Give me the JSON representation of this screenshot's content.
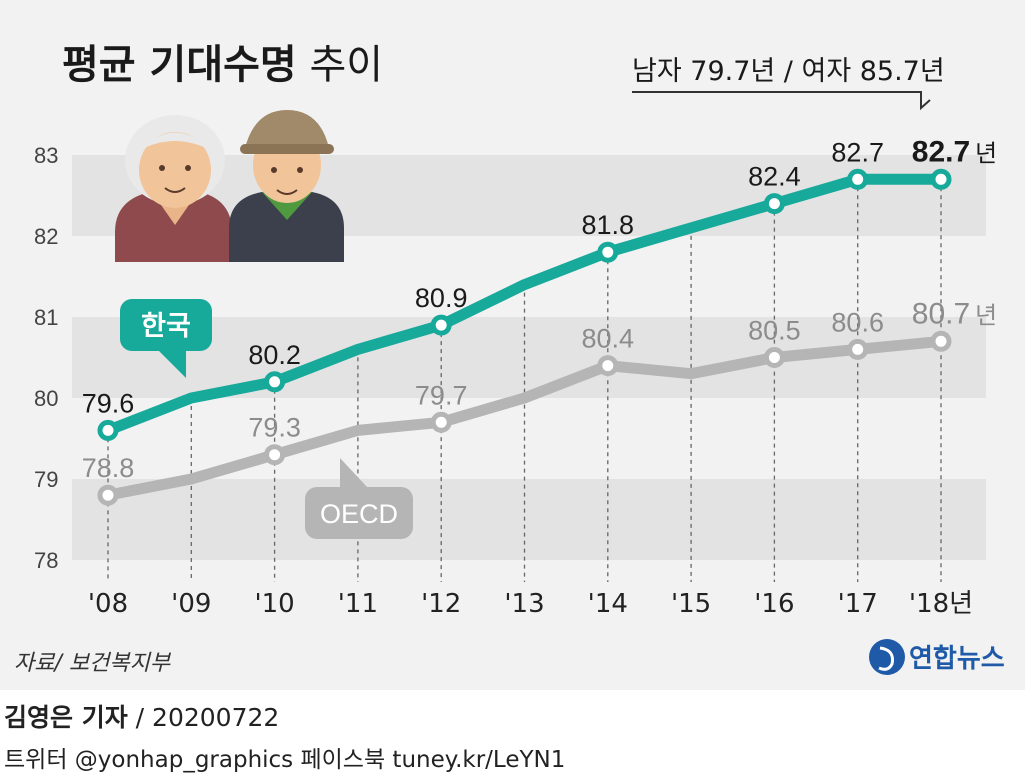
{
  "title_bold": "평균 기대수명",
  "title_rest": " 추이",
  "gender_note": "남자 79.7년 / 여자 85.7년",
  "source": "자료/ 보건복지부",
  "logo_text": "연합뉴스",
  "credit": {
    "reporter": "김영은 기자",
    "date": " / 20200722"
  },
  "social": "트위터 @yonhap_graphics  페이스북 tuney.kr/LeYN1",
  "year_unit": "년",
  "colors": {
    "korea": "#17a99a",
    "oecd": "#b5b5b5",
    "band": "#e3e3e3",
    "label_dark": "#1a1a1a",
    "label_grey": "#8c8c8c"
  },
  "chart_data": {
    "type": "line",
    "x": [
      "'08",
      "'09",
      "'10",
      "'11",
      "'12",
      "'13",
      "'14",
      "'15",
      "'16",
      "'17",
      "'18년"
    ],
    "ylim": [
      78,
      83
    ],
    "yticks": [
      "78",
      "79",
      "80",
      "81",
      "82",
      "83"
    ],
    "grid": "horizontal bands",
    "series": [
      {
        "name": "한국",
        "values": [
          79.6,
          80.0,
          80.2,
          80.6,
          80.9,
          81.4,
          81.8,
          82.1,
          82.4,
          82.7,
          82.7
        ],
        "labels": [
          "79.6",
          "",
          "80.2",
          "",
          "80.9",
          "",
          "81.8",
          "",
          "82.4",
          "82.7",
          "82.7"
        ]
      },
      {
        "name": "OECD",
        "values": [
          78.8,
          79.0,
          79.3,
          79.6,
          79.7,
          80.0,
          80.4,
          80.3,
          80.5,
          80.6,
          80.7
        ],
        "labels": [
          "78.8",
          "",
          "79.3",
          "",
          "79.7",
          "",
          "80.4",
          "",
          "80.5",
          "80.6",
          "80.7"
        ]
      }
    ]
  }
}
